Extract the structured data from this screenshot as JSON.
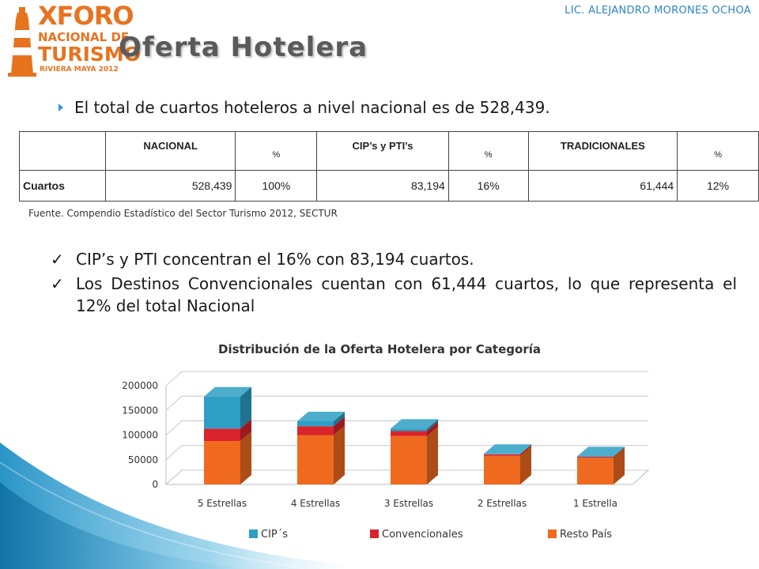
{
  "header": {
    "author": "LIC. ALEJANDRO MORONES OCHOA",
    "title": "Oferta Hotelera",
    "logo": {
      "line1": "XFORO",
      "line2": "NACIONAL DE",
      "line3": "TURISMO",
      "line4": "RIVIERA MAYA 2012"
    }
  },
  "bullet": "El total de cuartos hoteleros a nivel nacional es de 528,439.",
  "table": {
    "headers": [
      "",
      "NACIONAL",
      "%",
      "CIP’s y PTI’s",
      "%",
      "TRADICIONALES",
      "%"
    ],
    "row": {
      "label": "Cuartos",
      "nacional": "528,439",
      "nacional_pct": "100%",
      "cip": "83,194",
      "cip_pct": "16%",
      "tradicionales": "61,444",
      "tradicionales_pct": "12%"
    }
  },
  "source": "Fuente. Compendio Estadístico del Sector Turismo 2012, SECTUR",
  "checks": [
    "CIP’s y PTI concentran el 16% con 83,194 cuartos.",
    "Los Destinos Convencionales cuentan con 61,444 cuartos, lo que representa el 12% del total Nacional"
  ],
  "colors": {
    "cip": "#2e9fc4",
    "convencionales": "#d9232d",
    "resto": "#ef6a1f",
    "accent": "#2e86c1"
  },
  "chart_data": {
    "type": "bar",
    "stacked": true,
    "three_d": true,
    "title": "Distribución de la Oferta Hotelera por Categoría",
    "categories": [
      "5 Estrellas",
      "4 Estrellas",
      "3 Estrellas",
      "2 Estrellas",
      "1 Estrella"
    ],
    "series": [
      {
        "name": "Resto País",
        "values": [
          88000,
          100000,
          98000,
          58000,
          54000
        ]
      },
      {
        "name": "Convencionales",
        "values": [
          25000,
          18000,
          10000,
          3000,
          2000
        ]
      },
      {
        "name": "CIP´s",
        "values": [
          65000,
          10000,
          5000,
          1000,
          1000
        ]
      }
    ],
    "legend_order": [
      "CIP´s",
      "Convencionales",
      "Resto País"
    ],
    "ylim": [
      0,
      200000
    ],
    "yticks": [
      0,
      50000,
      100000,
      150000,
      200000
    ],
    "grid": true,
    "legend_position": "bottom"
  }
}
